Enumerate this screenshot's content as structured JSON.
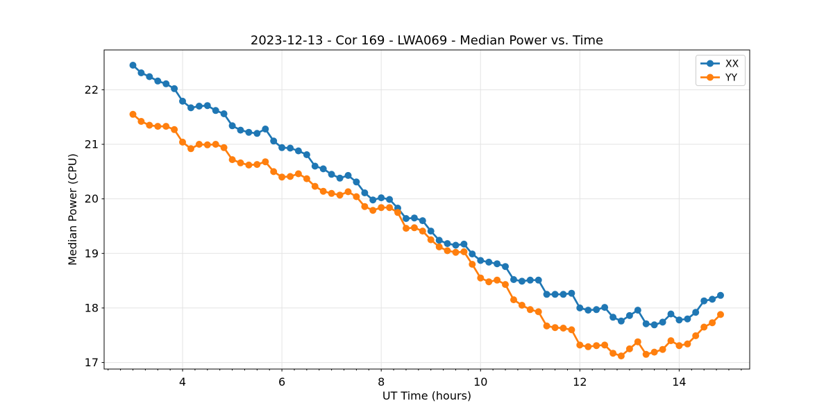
{
  "chart_data": {
    "type": "line",
    "title": "2023-12-13 - Cor 169 - LWA069 - Median Power vs. Time",
    "xlabel": "UT Time (hours)",
    "ylabel": "Median Power (CPU)",
    "xlim": [
      2.42,
      15.42
    ],
    "ylim": [
      16.88,
      22.73
    ],
    "xticks": [
      4,
      6,
      8,
      10,
      12,
      14
    ],
    "yticks": [
      17,
      18,
      19,
      20,
      21,
      22
    ],
    "x_minor_step": 0.25,
    "grid": true,
    "grid_color": "#e3e3e3",
    "legend": {
      "position": "upper right",
      "entries": [
        "XX",
        "YY"
      ]
    },
    "x": [
      3.0,
      3.167,
      3.333,
      3.5,
      3.667,
      3.833,
      4.0,
      4.167,
      4.333,
      4.5,
      4.667,
      4.833,
      5.0,
      5.167,
      5.333,
      5.5,
      5.667,
      5.833,
      6.0,
      6.167,
      6.333,
      6.5,
      6.667,
      6.833,
      7.0,
      7.167,
      7.333,
      7.5,
      7.667,
      7.833,
      8.0,
      8.167,
      8.333,
      8.5,
      8.667,
      8.833,
      9.0,
      9.167,
      9.333,
      9.5,
      9.667,
      9.833,
      10.0,
      10.167,
      10.333,
      10.5,
      10.667,
      10.833,
      11.0,
      11.167,
      11.333,
      11.5,
      11.667,
      11.833,
      12.0,
      12.167,
      12.333,
      12.5,
      12.667,
      12.833,
      13.0,
      13.167,
      13.333,
      13.5,
      13.667,
      13.833,
      14.0,
      14.167,
      14.333,
      14.5,
      14.667,
      14.833
    ],
    "series": [
      {
        "name": "XX",
        "color": "#1f77b4",
        "values": [
          22.45,
          22.31,
          22.24,
          22.16,
          22.11,
          22.02,
          21.79,
          21.67,
          21.7,
          21.71,
          21.62,
          21.56,
          21.34,
          21.26,
          21.22,
          21.2,
          21.28,
          21.06,
          20.94,
          20.93,
          20.88,
          20.81,
          20.6,
          20.55,
          20.45,
          20.38,
          20.43,
          20.31,
          20.11,
          19.98,
          20.02,
          19.99,
          19.83,
          19.64,
          19.65,
          19.6,
          19.41,
          19.24,
          19.18,
          19.15,
          19.17,
          18.99,
          18.87,
          18.84,
          18.81,
          18.76,
          18.52,
          18.49,
          18.51,
          18.51,
          18.25,
          18.25,
          18.25,
          18.27,
          18.0,
          17.96,
          17.97,
          18.01,
          17.83,
          17.76,
          17.86,
          17.96,
          17.71,
          17.69,
          17.74,
          17.89,
          17.78,
          17.8,
          17.92,
          18.13,
          18.16,
          18.23
        ]
      },
      {
        "name": "YY",
        "color": "#ff7f0e",
        "values": [
          21.55,
          21.42,
          21.35,
          21.33,
          21.33,
          21.27,
          21.04,
          20.92,
          21.0,
          20.99,
          21.0,
          20.94,
          20.72,
          20.66,
          20.62,
          20.63,
          20.68,
          20.5,
          20.4,
          20.41,
          20.46,
          20.37,
          20.23,
          20.14,
          20.1,
          20.07,
          20.13,
          20.04,
          19.86,
          19.79,
          19.84,
          19.84,
          19.75,
          19.46,
          19.47,
          19.41,
          19.25,
          19.12,
          19.05,
          19.02,
          19.03,
          18.8,
          18.55,
          18.48,
          18.51,
          18.43,
          18.15,
          18.05,
          17.97,
          17.93,
          17.67,
          17.64,
          17.63,
          17.6,
          17.32,
          17.29,
          17.31,
          17.32,
          17.17,
          17.12,
          17.25,
          17.38,
          17.15,
          17.19,
          17.24,
          17.4,
          17.31,
          17.34,
          17.49,
          17.65,
          17.73,
          17.88
        ]
      }
    ]
  }
}
